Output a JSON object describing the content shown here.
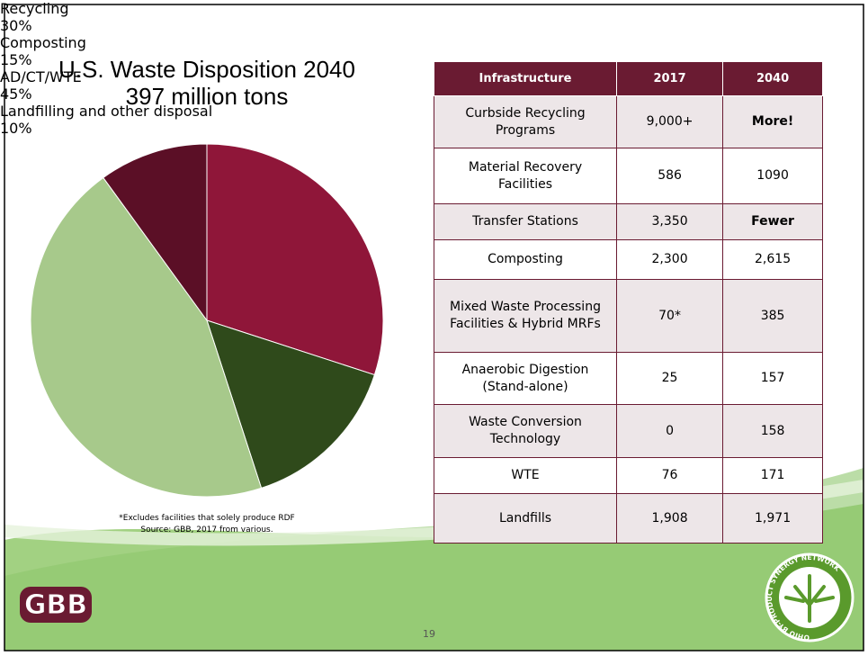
{
  "chart_data": {
    "type": "pie",
    "title": "U.S. Waste Disposition 2040",
    "subtitle": "397 million tons",
    "categories": [
      "Recycling",
      "Composting",
      "AD/CT/WTE",
      "Landfilling and other disposal"
    ],
    "values": [
      30,
      15,
      45,
      10
    ],
    "value_labels": [
      "30%",
      "15%",
      "45%",
      "10%"
    ],
    "colors": [
      "#8f1639",
      "#2f4a1b",
      "#a7c98b",
      "#5b0f26"
    ]
  },
  "table": {
    "header": [
      "Infrastructure",
      "2017",
      "2040"
    ],
    "rows": [
      [
        "Curbside Recycling Programs",
        "9,000+",
        "More!"
      ],
      [
        "Material Recovery Facilities",
        "586",
        "1090"
      ],
      [
        "Transfer Stations",
        "3,350",
        "Fewer"
      ],
      [
        "Composting",
        "2,300",
        "2,615"
      ],
      [
        "Mixed Waste Processing Facilities & Hybrid MRFs",
        "70*",
        "385"
      ],
      [
        "Anaerobic Digestion (Stand-alone)",
        "25",
        "157"
      ],
      [
        "Waste Conversion Technology",
        "0",
        "158"
      ],
      [
        "WTE",
        "76",
        "171"
      ],
      [
        "Landfills",
        "1,908",
        "1,971"
      ]
    ]
  },
  "footnote": "*Excludes facilities that solely produce RDF",
  "source": "Source: GBB, 2017 from various.",
  "page_number": "19",
  "logo_left": "GBB",
  "logo_right": "OHIO BY-PRODUCT SYNERGY NETWORK"
}
